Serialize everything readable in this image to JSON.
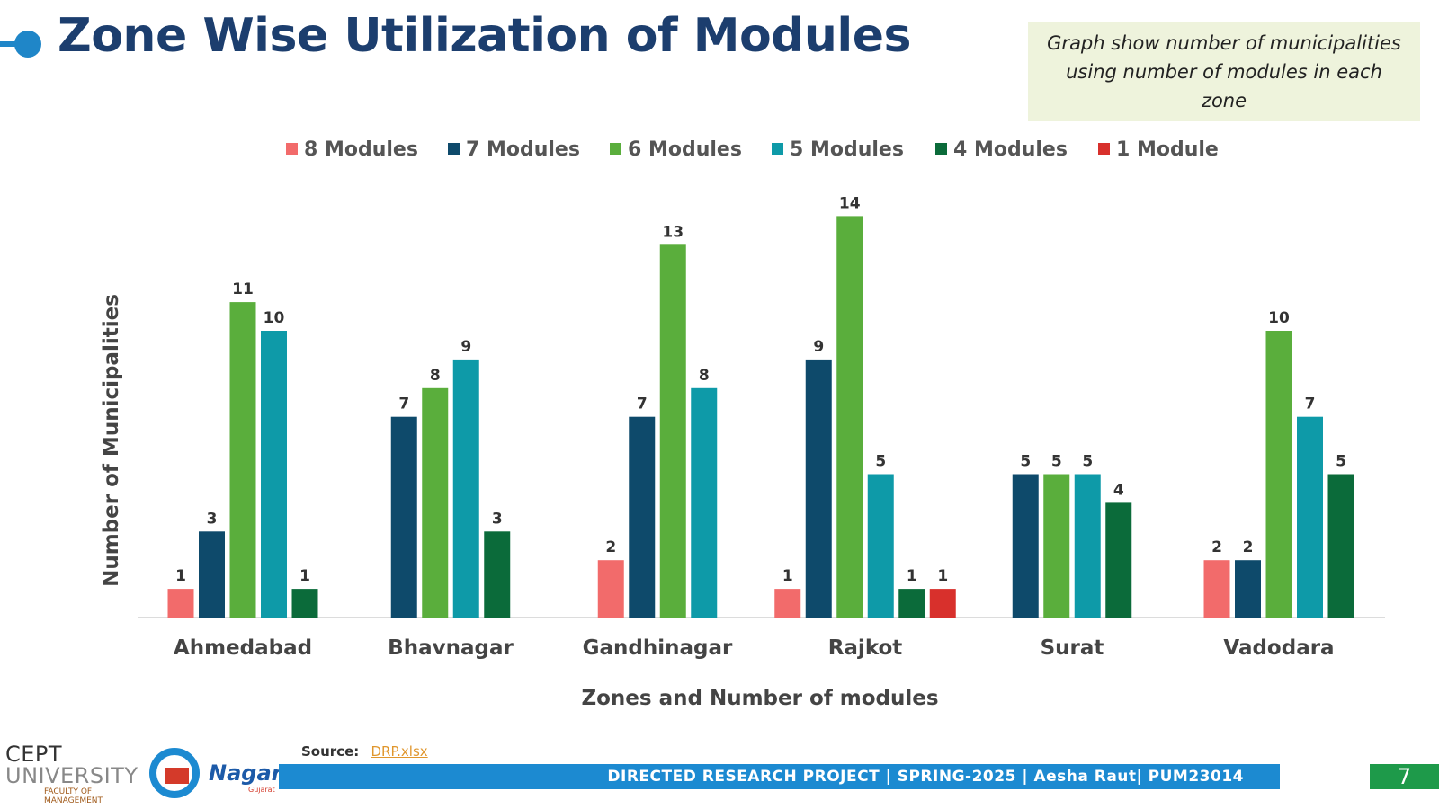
{
  "page": {
    "title": "Zone Wise Utilization of Modules",
    "note": "Graph show number of municipalities using number of modules in each zone",
    "source_label": "Source:",
    "source_link": "DRP.xlsx",
    "footer": "DIRECTED RESEARCH PROJECT |  SPRING-2025 | Aesha Raut| PUM23014",
    "page_number": "7",
    "logo_cept_line1": "CEPT",
    "logo_cept_line2": "UNIVERSITY",
    "logo_cept_line3": "FACULTY OF MANAGEMENT",
    "logo_nagar": "Nagar",
    "logo_nagar_sub": "Gujarat"
  },
  "colors": {
    "title": "#1c3e6e",
    "accent": "#1f86c8",
    "note_bg": "#eef3dc",
    "footer_bar": "#1c8ad1",
    "page_badge": "#1e9a4a"
  },
  "chart_data": {
    "type": "bar",
    "xlabel": "Zones and Number of modules",
    "ylabel": "Number of Municipalities",
    "ylim": [
      0,
      15
    ],
    "grid": false,
    "legend_position": "top",
    "categories": [
      "Ahmedabad",
      "Bhavnagar",
      "Gandhinagar",
      "Rajkot",
      "Surat",
      "Vadodara"
    ],
    "series": [
      {
        "name": "8 Modules",
        "color": "#f26b6b",
        "values": [
          1,
          null,
          2,
          1,
          null,
          2
        ]
      },
      {
        "name": "7 Modules",
        "color": "#0e4a6b",
        "values": [
          3,
          7,
          7,
          9,
          5,
          2
        ]
      },
      {
        "name": "6 Modules",
        "color": "#5aae3c",
        "values": [
          11,
          8,
          13,
          14,
          5,
          10
        ]
      },
      {
        "name": "5 Modules",
        "color": "#0e9aa8",
        "values": [
          10,
          9,
          8,
          5,
          5,
          7
        ]
      },
      {
        "name": "4 Modules",
        "color": "#0b6b3a",
        "values": [
          1,
          3,
          null,
          1,
          4,
          5
        ]
      },
      {
        "name": "1 Module",
        "color": "#d8302c",
        "values": [
          null,
          null,
          null,
          1,
          null,
          null
        ]
      }
    ]
  }
}
